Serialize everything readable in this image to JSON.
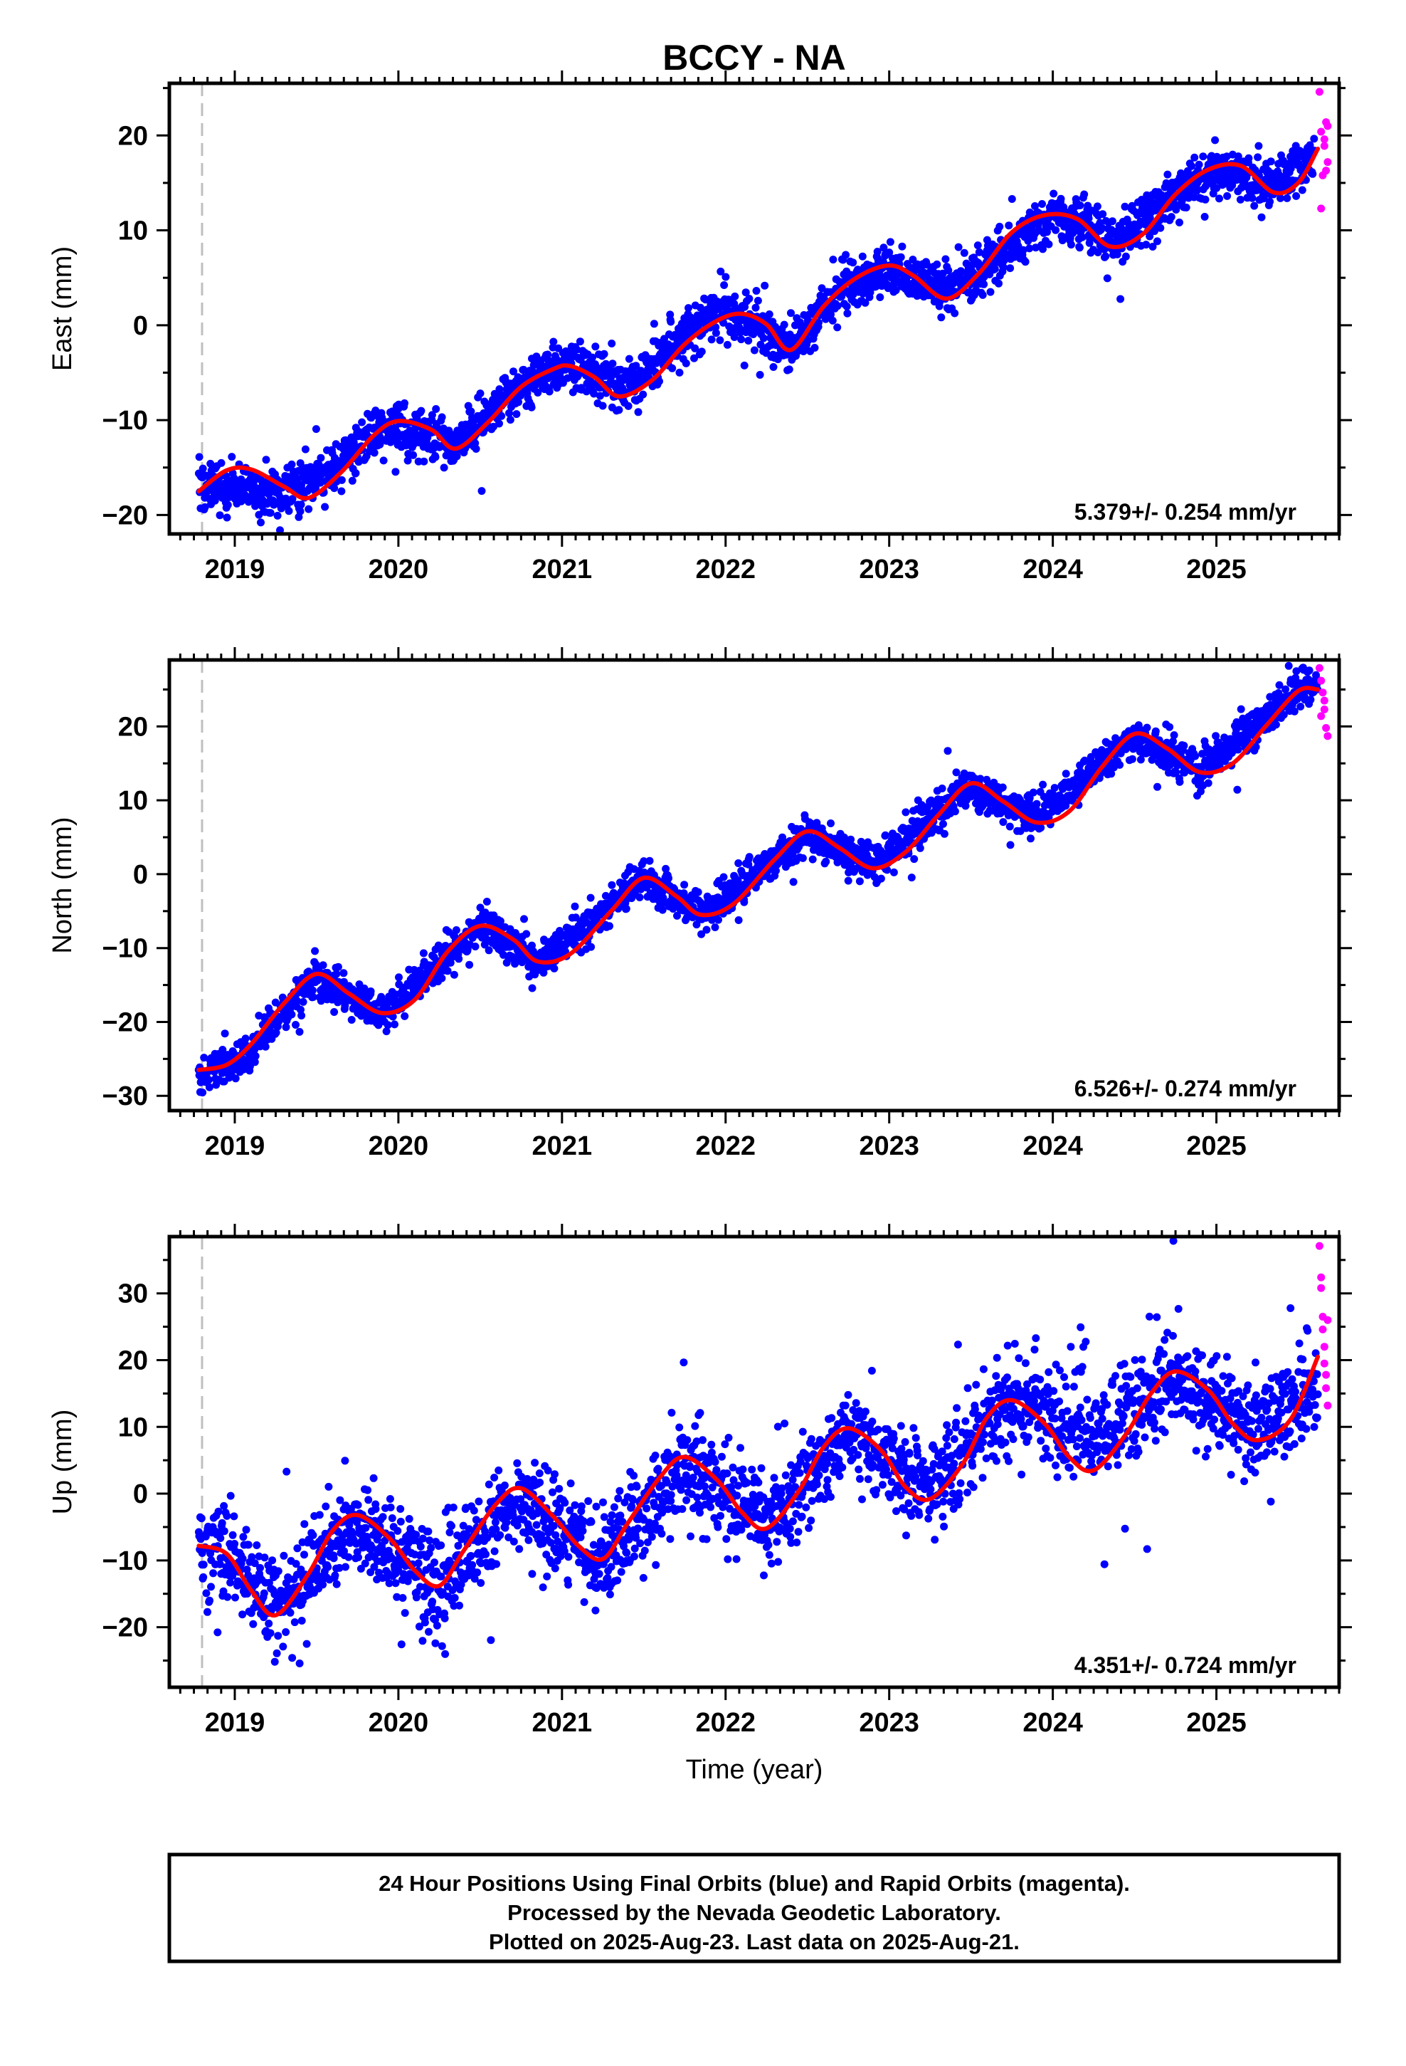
{
  "title": "BCCY - NA",
  "colors": {
    "final_orbits": "#0000ff",
    "rapid_orbits": "#ff00ff",
    "model_fit": "#ff0000",
    "reference_line": "#bfbfbf",
    "frame": "#000000"
  },
  "x_axis": {
    "label": "Time (year)",
    "range": [
      2018.6,
      2025.75
    ],
    "major_ticks": [
      2019,
      2020,
      2021,
      2022,
      2023,
      2024,
      2025
    ],
    "tick_labels": [
      "2019",
      "2020",
      "2021",
      "2022",
      "2023",
      "2024",
      "2025"
    ],
    "reference_epoch": 2018.8
  },
  "chart_data": [
    {
      "type": "scatter",
      "component": "east",
      "ylabel": "East (mm)",
      "ylim": [
        -22,
        25.5
      ],
      "y_ticks": [
        -20,
        -10,
        0,
        10,
        20
      ],
      "y_tick_labels": [
        "−20",
        "−10",
        "0",
        "10",
        "20"
      ],
      "rate_text": "5.379+/- 0.254 mm/yr",
      "fit": {
        "x": [
          2018.78,
          2018.95,
          2019.1,
          2019.3,
          2019.45,
          2019.65,
          2019.85,
          2020.0,
          2020.2,
          2020.35,
          2020.55,
          2020.75,
          2020.95,
          2021.05,
          2021.2,
          2021.35,
          2021.55,
          2021.75,
          2021.95,
          2022.1,
          2022.25,
          2022.4,
          2022.6,
          2022.8,
          2023.0,
          2023.15,
          2023.35,
          2023.55,
          2023.75,
          2023.95,
          2024.15,
          2024.35,
          2024.55,
          2024.75,
          2024.95,
          2025.15,
          2025.35,
          2025.5,
          2025.62
        ],
        "y": [
          -17.5,
          -15.3,
          -15.2,
          -17.0,
          -18.2,
          -15.5,
          -11.6,
          -10.1,
          -11.0,
          -13.0,
          -10.2,
          -6.5,
          -4.6,
          -4.3,
          -5.5,
          -7.5,
          -5.8,
          -2.0,
          0.5,
          1.2,
          0.1,
          -2.6,
          2.0,
          5.0,
          6.3,
          5.2,
          2.8,
          5.5,
          9.8,
          11.6,
          11.2,
          8.3,
          9.6,
          13.8,
          16.4,
          16.8,
          14.0,
          15.0,
          18.6
        ]
      },
      "final_orbits_trend": {
        "x": [
          2018.78,
          2019.3,
          2019.6,
          2019.9,
          2020.35,
          2020.7,
          2021.0,
          2021.4,
          2021.7,
          2022.0,
          2022.4,
          2022.7,
          2023.0,
          2023.4,
          2023.7,
          2024.0,
          2024.4,
          2024.7,
          2025.0,
          2025.35,
          2025.6
        ],
        "y": [
          -17.0,
          -17.8,
          -15.0,
          -10.5,
          -12.5,
          -7.0,
          -3.8,
          -6.8,
          -1.8,
          1.8,
          -2.2,
          3.5,
          6.0,
          3.5,
          8.0,
          11.5,
          9.0,
          13.0,
          16.5,
          14.5,
          18.2
        ]
      },
      "final_orbits_scatter_mm": 1.4,
      "rapid_orbits": {
        "x": [
          2025.63,
          2025.64,
          2025.65,
          2025.66,
          2025.67,
          2025.68,
          2025.64,
          2025.66,
          2025.67,
          2025.68
        ],
        "y": [
          24.6,
          12.3,
          15.8,
          18.9,
          21.4,
          17.2,
          20.4,
          19.6,
          16.3,
          21.0
        ]
      }
    },
    {
      "type": "scatter",
      "component": "north",
      "ylabel": "North (mm)",
      "ylim": [
        -32,
        29
      ],
      "y_ticks": [
        -30,
        -20,
        -10,
        0,
        10,
        20
      ],
      "y_tick_labels": [
        "−30",
        "−20",
        "−10",
        "0",
        "10",
        "20"
      ],
      "rate_text": "6.526+/- 0.274 mm/yr",
      "fit": {
        "x": [
          2018.78,
          2018.95,
          2019.1,
          2019.3,
          2019.5,
          2019.7,
          2019.9,
          2020.1,
          2020.3,
          2020.5,
          2020.7,
          2020.85,
          2021.05,
          2021.3,
          2021.5,
          2021.7,
          2021.85,
          2022.05,
          2022.3,
          2022.5,
          2022.7,
          2022.9,
          2023.1,
          2023.3,
          2023.5,
          2023.7,
          2023.9,
          2024.1,
          2024.3,
          2024.5,
          2024.7,
          2024.9,
          2025.1,
          2025.3,
          2025.5,
          2025.62
        ],
        "y": [
          -26.5,
          -25.8,
          -23.0,
          -17.5,
          -13.5,
          -16.2,
          -18.8,
          -17.0,
          -10.5,
          -7.0,
          -8.8,
          -11.8,
          -10.8,
          -5.0,
          -0.5,
          -3.0,
          -5.5,
          -4.0,
          2.0,
          5.8,
          3.5,
          0.8,
          3.0,
          8.0,
          12.3,
          9.8,
          7.0,
          8.5,
          14.5,
          19.0,
          17.0,
          13.8,
          15.0,
          20.0,
          24.8,
          25.0
        ]
      },
      "final_orbits_trend": {
        "x": [
          2018.78,
          2019.1,
          2019.5,
          2019.9,
          2020.5,
          2020.85,
          2021.5,
          2021.85,
          2022.5,
          2022.9,
          2023.5,
          2023.9,
          2024.5,
          2024.9,
          2025.5,
          2025.62
        ],
        "y": [
          -27.5,
          -24.0,
          -13.5,
          -19.0,
          -7.0,
          -12.0,
          -0.5,
          -5.5,
          5.5,
          1.5,
          12.0,
          7.5,
          18.5,
          14.0,
          25.0,
          25.5
        ]
      },
      "final_orbits_scatter_mm": 1.4,
      "rapid_orbits": {
        "x": [
          2025.63,
          2025.64,
          2025.65,
          2025.66,
          2025.67,
          2025.68,
          2025.64,
          2025.66
        ],
        "y": [
          27.9,
          26.2,
          24.6,
          22.3,
          19.8,
          18.7,
          21.4,
          23.5
        ]
      }
    },
    {
      "type": "scatter",
      "component": "up",
      "ylabel": "Up (mm)",
      "ylim": [
        -29,
        38.5
      ],
      "y_ticks": [
        -20,
        -10,
        0,
        10,
        20,
        30
      ],
      "y_tick_labels": [
        "−20",
        "−10",
        "0",
        "10",
        "20",
        "30"
      ],
      "rate_text": "4.351+/- 0.724 mm/yr",
      "fit": {
        "x": [
          2018.78,
          2018.95,
          2019.1,
          2019.25,
          2019.45,
          2019.6,
          2019.75,
          2019.95,
          2020.1,
          2020.25,
          2020.4,
          2020.6,
          2020.75,
          2020.95,
          2021.1,
          2021.25,
          2021.4,
          2021.6,
          2021.75,
          2021.95,
          2022.1,
          2022.25,
          2022.45,
          2022.6,
          2022.75,
          2022.95,
          2023.1,
          2023.25,
          2023.45,
          2023.6,
          2023.75,
          2023.95,
          2024.1,
          2024.25,
          2024.45,
          2024.6,
          2024.75,
          2024.95,
          2025.1,
          2025.25,
          2025.45,
          2025.62
        ],
        "y": [
          -7.8,
          -9.0,
          -14.5,
          -18.2,
          -12.0,
          -5.5,
          -3.2,
          -6.8,
          -11.5,
          -13.8,
          -8.5,
          -1.5,
          0.8,
          -3.5,
          -7.8,
          -9.8,
          -4.5,
          2.5,
          5.5,
          2.0,
          -2.8,
          -5.2,
          0.5,
          7.0,
          9.8,
          6.5,
          1.0,
          -0.8,
          4.5,
          11.5,
          14.0,
          10.5,
          5.5,
          3.5,
          9.0,
          15.0,
          18.3,
          15.5,
          10.5,
          8.0,
          11.0,
          20.5
        ]
      },
      "final_orbits_trend": {
        "x": [
          2018.78,
          2018.95,
          2019.25,
          2019.75,
          2020.25,
          2020.75,
          2021.25,
          2021.75,
          2022.25,
          2022.75,
          2023.25,
          2023.75,
          2024.25,
          2024.75,
          2025.25,
          2025.62
        ],
        "y": [
          -6.5,
          -9.0,
          -17.0,
          -4.5,
          -14.5,
          -1.0,
          -10.0,
          4.5,
          -4.5,
          9.5,
          0.0,
          14.5,
          8.0,
          16.5,
          10.0,
          17.0
        ]
      },
      "final_orbits_scatter_mm": 4.0,
      "rapid_orbits": {
        "x": [
          2025.63,
          2025.64,
          2025.65,
          2025.66,
          2025.67,
          2025.68,
          2025.64,
          2025.65,
          2025.66,
          2025.67,
          2025.68
        ],
        "y": [
          37.1,
          32.4,
          26.5,
          22.0,
          17.8,
          13.2,
          30.8,
          24.6,
          19.5,
          15.8,
          26.0
        ]
      }
    }
  ],
  "footer": {
    "line1": "24 Hour Positions Using Final Orbits (blue) and Rapid Orbits (magenta).",
    "line2": "Processed by the Nevada Geodetic Laboratory.",
    "line3": "Plotted on 2025-Aug-23. Last data on 2025-Aug-21."
  }
}
